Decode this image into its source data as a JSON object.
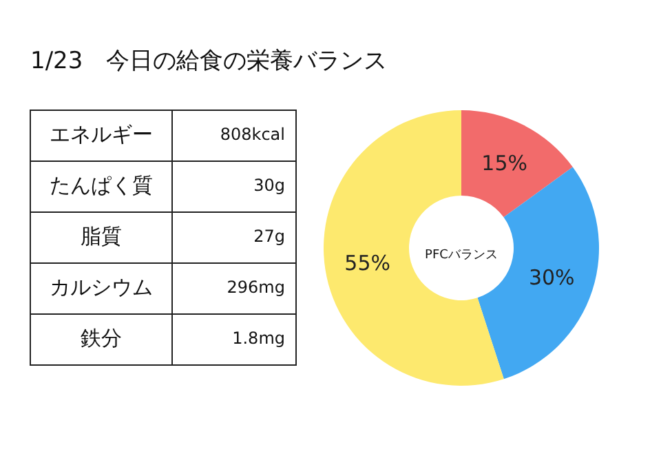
{
  "chart_data": [
    {
      "type": "other",
      "title": "1/23　今日の給食の栄養バランス",
      "categories": [
        "エネルギー",
        "たんぱく質",
        "脂質",
        "カルシウム",
        "鉄分"
      ],
      "value_labels": [
        "808kcal",
        "30g",
        "27g",
        "296mg",
        "1.8mg"
      ]
    },
    {
      "type": "donut",
      "categories": [
        null,
        null,
        null
      ],
      "values": [
        15,
        30,
        55
      ],
      "colors": [
        "#f26b6b",
        "#42a8f2",
        "#fde96e"
      ],
      "value_labels": [
        "15%",
        "30%",
        "55%"
      ],
      "annotations": [
        "PFCバランス"
      ]
    }
  ]
}
